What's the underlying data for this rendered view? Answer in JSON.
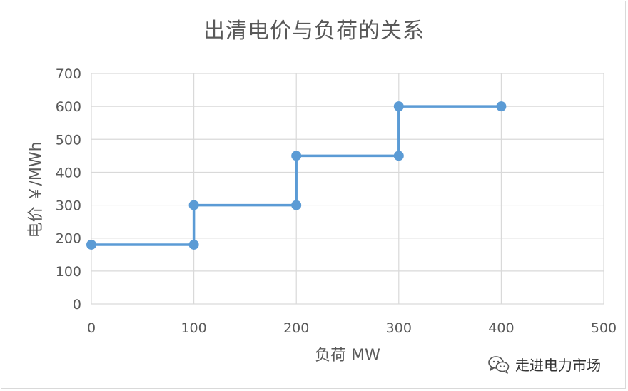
{
  "chart_data": {
    "type": "line",
    "title": "出清电价与负荷的关系",
    "xlabel": "负荷 MW",
    "ylabel": "电价 ￥/MWh",
    "xlim": [
      0,
      500
    ],
    "ylim": [
      0,
      700
    ],
    "xticks": [
      0,
      100,
      200,
      300,
      400,
      500
    ],
    "yticks": [
      0,
      100,
      200,
      300,
      400,
      500,
      600,
      700
    ],
    "grid": true,
    "series": [
      {
        "color": "#5b9bd5",
        "points": [
          [
            0,
            180
          ],
          [
            100,
            180
          ],
          [
            100,
            300
          ],
          [
            200,
            300
          ],
          [
            200,
            450
          ],
          [
            300,
            450
          ],
          [
            300,
            600
          ],
          [
            400,
            600
          ]
        ]
      }
    ]
  },
  "watermark": {
    "icon": "wechat-icon",
    "text": "走进电力市场"
  },
  "colors": {
    "grid": "#d9d9d9",
    "text": "#595959",
    "series": "#5b9bd5"
  }
}
